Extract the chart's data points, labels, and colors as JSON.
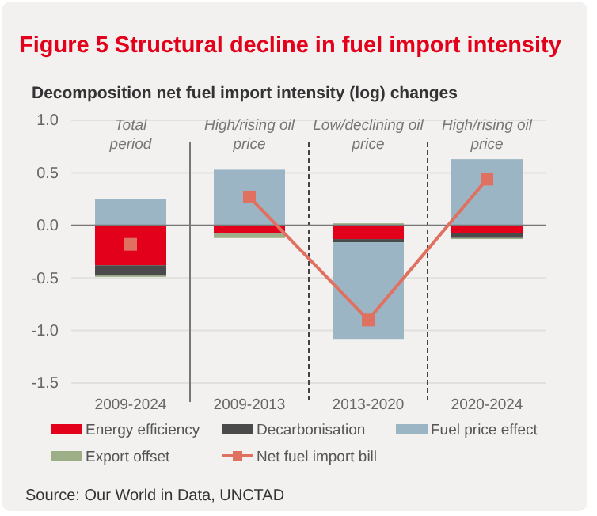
{
  "chart_data": {
    "type": "bar",
    "title": "Figure 5 Structural decline in fuel import intensity",
    "subtitle": "Decomposition net fuel import intensity (log) changes",
    "categories": [
      "2009-2024",
      "2009-2013",
      "2013-2020",
      "2020-2024"
    ],
    "stacked": true,
    "series": [
      {
        "name": "Energy efficiency",
        "color": "#e2001a",
        "values": [
          -0.38,
          -0.07,
          -0.13,
          -0.07
        ]
      },
      {
        "name": "Decarbonisation",
        "color": "#4a4a4a",
        "values": [
          -0.1,
          -0.01,
          -0.03,
          -0.05
        ]
      },
      {
        "name": "Fuel price effect",
        "color": "#9bb5c4",
        "values": [
          0.25,
          0.53,
          -0.92,
          0.63
        ]
      },
      {
        "name": "Export offset",
        "color": "#9caf86",
        "values": [
          -0.01,
          -0.04,
          0.02,
          -0.01
        ]
      },
      {
        "name": "Net fuel import bill",
        "type": "line",
        "color": "#e07060",
        "marker": "square",
        "values": [
          null,
          0.27,
          -0.9,
          0.44
        ]
      },
      {
        "type": "scatter",
        "color": "#e07060",
        "marker": "square",
        "values": [
          -0.18,
          null,
          null,
          null
        ]
      }
    ],
    "ylim": [
      -1.5,
      1.0
    ],
    "yticks": [
      {
        "value": -1.5,
        "label": "-1.5"
      },
      {
        "value": -1,
        "label": "-1.0"
      },
      {
        "value": -0.5,
        "label": "-0.5"
      },
      {
        "value": 0,
        "label": "0.0"
      },
      {
        "value": 0.5,
        "label": "0.5"
      },
      {
        "value": 1,
        "label": "1.0"
      }
    ],
    "grid": "y",
    "legend": "bottom",
    "annotations": [
      "Total period",
      "High/rising oil price",
      "Low/declining oil price",
      "High/rising oil price",
      "Source: Our World in Data, UNCTAD"
    ]
  }
}
